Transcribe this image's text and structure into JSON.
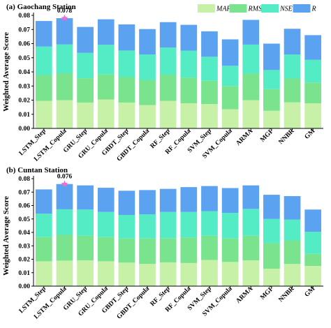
{
  "colors": {
    "MAPE": "#c6f1a6",
    "RMSE": "#79e38e",
    "NSE": "#53ecc4",
    "R": "#5ba2f0",
    "star": "#f36bd3"
  },
  "legend_items": [
    "MAPE",
    "RMSE",
    "NSE",
    "R"
  ],
  "ylabel": "Weighted Average Score",
  "chart_data": [
    {
      "type": "bar",
      "stacked": true,
      "title": "(a) Gaochang Station",
      "categories": [
        "LSTM_Step",
        "LSTM_Copula",
        "GRU_Step",
        "GRU_Copula",
        "GBDT_Step",
        "GBDT_Copula",
        "RF_Step",
        "RF_Copula",
        "SVM_Step",
        "SVM_Copula",
        "ARMA",
        "MGF",
        "NNBR",
        "GM"
      ],
      "series": [
        {
          "name": "MAPE",
          "values": [
            0.0195,
            0.02,
            0.0183,
            0.0205,
            0.0183,
            0.0165,
            0.0195,
            0.0178,
            0.0172,
            0.0135,
            0.02,
            0.0125,
            0.0185,
            0.0177
          ]
        },
        {
          "name": "RMSE",
          "values": [
            0.0183,
            0.019,
            0.0172,
            0.0177,
            0.018,
            0.0178,
            0.0185,
            0.0182,
            0.0165,
            0.0165,
            0.0188,
            0.0153,
            0.0168,
            0.0148
          ]
        },
        {
          "name": "NSE",
          "values": [
            0.0202,
            0.0205,
            0.018,
            0.021,
            0.0188,
            0.018,
            0.0192,
            0.019,
            0.017,
            0.0143,
            0.0205,
            0.0135,
            0.017,
            0.016
          ]
        },
        {
          "name": "R",
          "values": [
            0.018,
            0.0185,
            0.0183,
            0.018,
            0.0185,
            0.018,
            0.018,
            0.0183,
            0.018,
            0.0187,
            0.0175,
            0.0187,
            0.0182,
            0.0175
          ]
        }
      ],
      "ylim": [
        0,
        0.08
      ],
      "yticks": [
        "0.00",
        "0.01",
        "0.02",
        "0.03",
        "0.04",
        "0.05",
        "0.06",
        "0.07",
        "0.08"
      ],
      "annotation": {
        "category": "LSTM_Copula",
        "label": "0.078"
      }
    },
    {
      "type": "bar",
      "stacked": true,
      "title": "(b) Cuntan Station",
      "categories": [
        "LSTM_Step",
        "LSTM_Copula",
        "GRU_Step",
        "GRU_Copula",
        "GBDT_Step",
        "GBDT_Copula",
        "RF_Step",
        "RF_Copula",
        "SVM_Step",
        "SVM_Copula",
        "ARMA",
        "MGF",
        "NNBR",
        "GM"
      ],
      "series": [
        {
          "name": "MAPE",
          "values": [
            0.0185,
            0.019,
            0.0192,
            0.0185,
            0.0175,
            0.0165,
            0.0177,
            0.0172,
            0.0195,
            0.018,
            0.0192,
            0.013,
            0.0165,
            0.015
          ]
        },
        {
          "name": "RMSE",
          "values": [
            0.018,
            0.0192,
            0.0183,
            0.018,
            0.018,
            0.019,
            0.018,
            0.019,
            0.018,
            0.0175,
            0.0183,
            0.019,
            0.0175,
            0.009
          ]
        },
        {
          "name": "NSE",
          "values": [
            0.0175,
            0.019,
            0.0195,
            0.0187,
            0.0175,
            0.018,
            0.0195,
            0.019,
            0.0183,
            0.019,
            0.02,
            0.018,
            0.0155,
            0.0165
          ]
        },
        {
          "name": "R",
          "values": [
            0.018,
            0.0188,
            0.018,
            0.018,
            0.018,
            0.018,
            0.0172,
            0.0185,
            0.0187,
            0.0185,
            0.0175,
            0.018,
            0.0175,
            0.0165
          ]
        }
      ],
      "ylim": [
        0,
        0.08
      ],
      "yticks": [
        "0.00",
        "0.01",
        "0.02",
        "0.03",
        "0.04",
        "0.05",
        "0.06",
        "0.07",
        "0.08"
      ],
      "annotation": {
        "category": "LSTM_Copula",
        "label": "0.076"
      }
    }
  ]
}
